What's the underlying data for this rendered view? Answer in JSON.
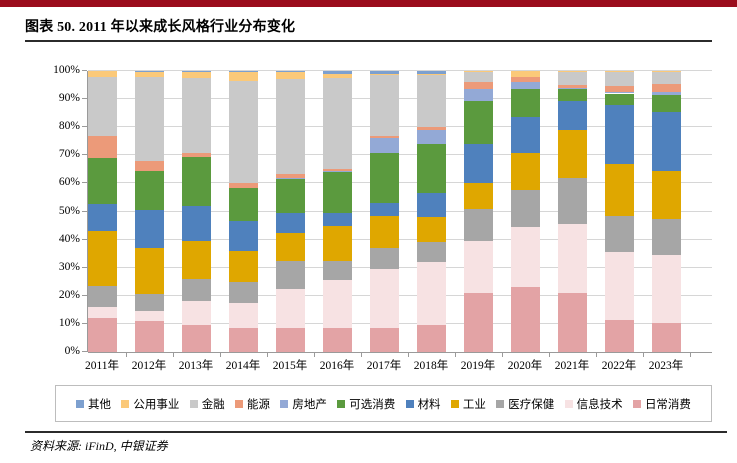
{
  "page": {
    "title": "图表 50. 2011 年以来成长风格行业分布变化",
    "source_note": "资料来源: iFinD, 中银证券",
    "accent_color": "#9b0c1c"
  },
  "chart_data": {
    "type": "bar",
    "stacked": true,
    "unit": "percent",
    "title": "2011 年以来成长风格行业分布变化",
    "categories": [
      "2011年",
      "2012年",
      "2013年",
      "2014年",
      "2015年",
      "2016年",
      "2017年",
      "2018年",
      "2019年",
      "2020年",
      "2021年",
      "2022年",
      "2023年"
    ],
    "y_ticks": [
      "0%",
      "10%",
      "20%",
      "30%",
      "40%",
      "50%",
      "60%",
      "70%",
      "80%",
      "90%",
      "100%"
    ],
    "ylim": [
      0,
      100
    ],
    "grid": true,
    "legend_position": "bottom",
    "legend_order": [
      "其他",
      "公用事业",
      "金融",
      "能源",
      "房地产",
      "可选消费",
      "材料",
      "工业",
      "医疗保健",
      "信息技术",
      "日常消费"
    ],
    "series": [
      {
        "name": "日常消费",
        "color": "#e3a3a5",
        "values": [
          12,
          11,
          9.5,
          8.5,
          8.5,
          8.5,
          8.5,
          9.5,
          21,
          23,
          21,
          11.5,
          10.5
        ]
      },
      {
        "name": "信息技术",
        "color": "#f7e2e3",
        "values": [
          4,
          3.5,
          8.5,
          9,
          14,
          17,
          21,
          22.5,
          18.5,
          21.5,
          24.5,
          24,
          24
        ]
      },
      {
        "name": "医疗保健",
        "color": "#a6a6a6",
        "values": [
          7.5,
          6,
          8,
          7.5,
          10,
          7,
          7.5,
          7,
          11.5,
          13,
          16.5,
          13,
          13
        ]
      },
      {
        "name": "工业",
        "color": "#dfa700",
        "values": [
          19.5,
          16.5,
          13.5,
          11,
          10,
          12.5,
          11.5,
          9,
          9,
          13.5,
          17,
          18.5,
          17
        ]
      },
      {
        "name": "材料",
        "color": "#4f81bd",
        "values": [
          9.5,
          13.5,
          12.5,
          10.5,
          7,
          4.5,
          4.5,
          8.5,
          14,
          12.5,
          10.5,
          21,
          21
        ]
      },
      {
        "name": "可选消费",
        "color": "#5b9a3e",
        "values": [
          16.5,
          14,
          17.5,
          12,
          12,
          14.5,
          18,
          17.5,
          15.5,
          10,
          4,
          4,
          6
        ]
      },
      {
        "name": "房地产",
        "color": "#93a9d6",
        "values": [
          0,
          0,
          0,
          0,
          0.5,
          0.5,
          5,
          5,
          4,
          2.5,
          0.5,
          0.5,
          1
        ]
      },
      {
        "name": "能源",
        "color": "#ec9a79",
        "values": [
          8,
          3.5,
          1.5,
          1.5,
          1.5,
          0.5,
          1,
          1,
          2.5,
          2,
          1,
          2,
          3
        ]
      },
      {
        "name": "金融",
        "color": "#c9c9c9",
        "values": [
          21,
          30,
          26.5,
          36.5,
          33.5,
          32.5,
          21.5,
          18.5,
          3.5,
          0,
          4.5,
          5,
          4
        ]
      },
      {
        "name": "公用事业",
        "color": "#fbc979",
        "values": [
          2,
          1.8,
          2,
          3,
          2.5,
          1.5,
          0.5,
          0.5,
          0.5,
          2,
          0.5,
          0.5,
          0.5
        ]
      },
      {
        "name": "其他",
        "color": "#7da0cf",
        "values": [
          0,
          0.2,
          0.5,
          0.5,
          0.5,
          1,
          1,
          1,
          0,
          0,
          0,
          0,
          0
        ]
      }
    ]
  }
}
